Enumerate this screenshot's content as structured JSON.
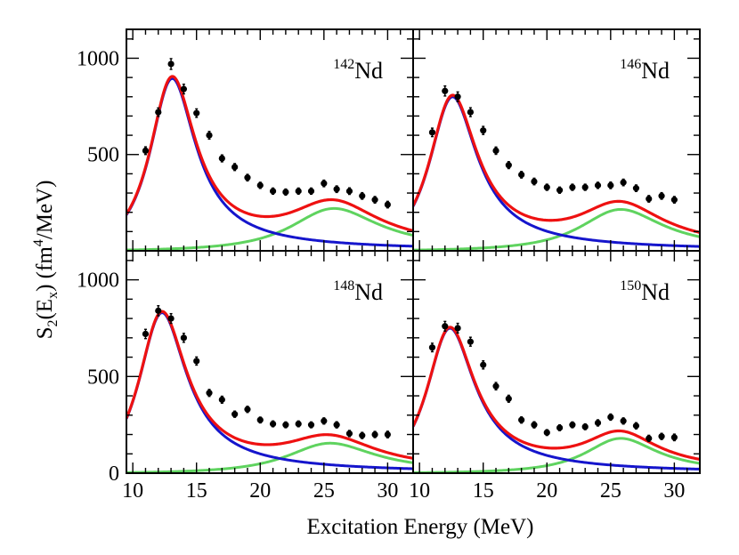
{
  "chart_data": {
    "type": "scatter",
    "layout": "2x2 grid of panels sharing axes",
    "xlabel": "Excitation Energy (MeV)",
    "ylabel_parts": {
      "s": "S",
      "sub2": "2",
      "open": "(E",
      "subx": "x",
      "mid": ") (fm",
      "sup4": "4",
      "close": "/MeV)"
    },
    "xlim": [
      9.5,
      32
    ],
    "ylim": [
      0,
      1150
    ],
    "xticks": [
      10,
      15,
      20,
      25,
      30
    ],
    "yticks": [
      0,
      500,
      1000
    ],
    "colors": {
      "total_fit": "#ee1111",
      "lorentzian_1": "#1515cc",
      "lorentzian_2": "#5fd35f",
      "data": "#000000"
    },
    "panels": [
      {
        "label_mass": "142",
        "label_el": "Nd",
        "comp1": {
          "A": 895,
          "E0": 13.1,
          "G": 4.4
        },
        "comp2": {
          "A": 220,
          "E0": 25.8,
          "G": 8.5
        },
        "points": [
          {
            "x": 11.0,
            "y": 520,
            "err": 20
          },
          {
            "x": 12.0,
            "y": 720,
            "err": 22
          },
          {
            "x": 13.0,
            "y": 970,
            "err": 28
          },
          {
            "x": 14.0,
            "y": 840,
            "err": 25
          },
          {
            "x": 15.0,
            "y": 715,
            "err": 22
          },
          {
            "x": 16.0,
            "y": 600,
            "err": 20
          },
          {
            "x": 17.0,
            "y": 480,
            "err": 18
          },
          {
            "x": 18.0,
            "y": 435,
            "err": 18
          },
          {
            "x": 19.0,
            "y": 380,
            "err": 17
          },
          {
            "x": 20.0,
            "y": 340,
            "err": 16
          },
          {
            "x": 21.0,
            "y": 310,
            "err": 16
          },
          {
            "x": 22.0,
            "y": 305,
            "err": 16
          },
          {
            "x": 23.0,
            "y": 310,
            "err": 16
          },
          {
            "x": 24.0,
            "y": 310,
            "err": 16
          },
          {
            "x": 25.0,
            "y": 350,
            "err": 17
          },
          {
            "x": 26.0,
            "y": 320,
            "err": 17
          },
          {
            "x": 27.0,
            "y": 310,
            "err": 17
          },
          {
            "x": 28.0,
            "y": 285,
            "err": 17
          },
          {
            "x": 29.0,
            "y": 265,
            "err": 17
          },
          {
            "x": 30.0,
            "y": 240,
            "err": 17
          }
        ]
      },
      {
        "label_mass": "146",
        "label_el": "Nd",
        "comp1": {
          "A": 800,
          "E0": 12.6,
          "G": 4.6
        },
        "comp2": {
          "A": 215,
          "E0": 25.8,
          "G": 8.0
        },
        "points": [
          {
            "x": 11.0,
            "y": 615,
            "err": 22
          },
          {
            "x": 12.0,
            "y": 830,
            "err": 26
          },
          {
            "x": 13.0,
            "y": 800,
            "err": 25
          },
          {
            "x": 14.0,
            "y": 720,
            "err": 23
          },
          {
            "x": 15.0,
            "y": 625,
            "err": 21
          },
          {
            "x": 16.0,
            "y": 520,
            "err": 19
          },
          {
            "x": 17.0,
            "y": 445,
            "err": 18
          },
          {
            "x": 18.0,
            "y": 395,
            "err": 17
          },
          {
            "x": 19.0,
            "y": 360,
            "err": 17
          },
          {
            "x": 20.0,
            "y": 330,
            "err": 16
          },
          {
            "x": 21.0,
            "y": 315,
            "err": 16
          },
          {
            "x": 22.0,
            "y": 330,
            "err": 16
          },
          {
            "x": 23.0,
            "y": 330,
            "err": 16
          },
          {
            "x": 24.0,
            "y": 340,
            "err": 16
          },
          {
            "x": 25.0,
            "y": 340,
            "err": 17
          },
          {
            "x": 26.0,
            "y": 355,
            "err": 17
          },
          {
            "x": 27.0,
            "y": 325,
            "err": 17
          },
          {
            "x": 28.0,
            "y": 270,
            "err": 17
          },
          {
            "x": 29.0,
            "y": 285,
            "err": 17
          },
          {
            "x": 30.0,
            "y": 265,
            "err": 17
          }
        ]
      },
      {
        "label_mass": "148",
        "label_el": "Nd",
        "comp1": {
          "A": 830,
          "E0": 12.3,
          "G": 4.6
        },
        "comp2": {
          "A": 155,
          "E0": 25.5,
          "G": 8.5
        },
        "points": [
          {
            "x": 11.0,
            "y": 720,
            "err": 24
          },
          {
            "x": 12.0,
            "y": 840,
            "err": 26
          },
          {
            "x": 13.0,
            "y": 800,
            "err": 25
          },
          {
            "x": 14.0,
            "y": 700,
            "err": 23
          },
          {
            "x": 15.0,
            "y": 580,
            "err": 21
          },
          {
            "x": 16.0,
            "y": 415,
            "err": 18
          },
          {
            "x": 17.0,
            "y": 380,
            "err": 18
          },
          {
            "x": 18.0,
            "y": 305,
            "err": 16
          },
          {
            "x": 19.0,
            "y": 330,
            "err": 16
          },
          {
            "x": 20.0,
            "y": 275,
            "err": 15
          },
          {
            "x": 21.0,
            "y": 255,
            "err": 15
          },
          {
            "x": 22.0,
            "y": 250,
            "err": 15
          },
          {
            "x": 23.0,
            "y": 255,
            "err": 15
          },
          {
            "x": 24.0,
            "y": 250,
            "err": 15
          },
          {
            "x": 25.0,
            "y": 270,
            "err": 16
          },
          {
            "x": 26.0,
            "y": 250,
            "err": 16
          },
          {
            "x": 27.0,
            "y": 205,
            "err": 16
          },
          {
            "x": 28.0,
            "y": 195,
            "err": 16
          },
          {
            "x": 29.0,
            "y": 200,
            "err": 16
          },
          {
            "x": 30.0,
            "y": 200,
            "err": 17
          }
        ]
      },
      {
        "label_mass": "150",
        "label_el": "Nd",
        "comp1": {
          "A": 750,
          "E0": 12.4,
          "G": 4.6
        },
        "comp2": {
          "A": 180,
          "E0": 25.8,
          "G": 7.0
        },
        "points": [
          {
            "x": 11.0,
            "y": 650,
            "err": 22
          },
          {
            "x": 12.0,
            "y": 760,
            "err": 25
          },
          {
            "x": 13.0,
            "y": 750,
            "err": 25
          },
          {
            "x": 14.0,
            "y": 680,
            "err": 23
          },
          {
            "x": 15.0,
            "y": 560,
            "err": 21
          },
          {
            "x": 16.0,
            "y": 450,
            "err": 19
          },
          {
            "x": 17.0,
            "y": 385,
            "err": 18
          },
          {
            "x": 18.0,
            "y": 275,
            "err": 16
          },
          {
            "x": 19.0,
            "y": 250,
            "err": 16
          },
          {
            "x": 20.0,
            "y": 210,
            "err": 15
          },
          {
            "x": 21.0,
            "y": 235,
            "err": 15
          },
          {
            "x": 22.0,
            "y": 250,
            "err": 15
          },
          {
            "x": 23.0,
            "y": 240,
            "err": 15
          },
          {
            "x": 24.0,
            "y": 260,
            "err": 16
          },
          {
            "x": 25.0,
            "y": 290,
            "err": 16
          },
          {
            "x": 26.0,
            "y": 270,
            "err": 16
          },
          {
            "x": 27.0,
            "y": 245,
            "err": 16
          },
          {
            "x": 28.0,
            "y": 180,
            "err": 16
          },
          {
            "x": 29.0,
            "y": 190,
            "err": 16
          },
          {
            "x": 30.0,
            "y": 185,
            "err": 17
          }
        ]
      }
    ]
  }
}
